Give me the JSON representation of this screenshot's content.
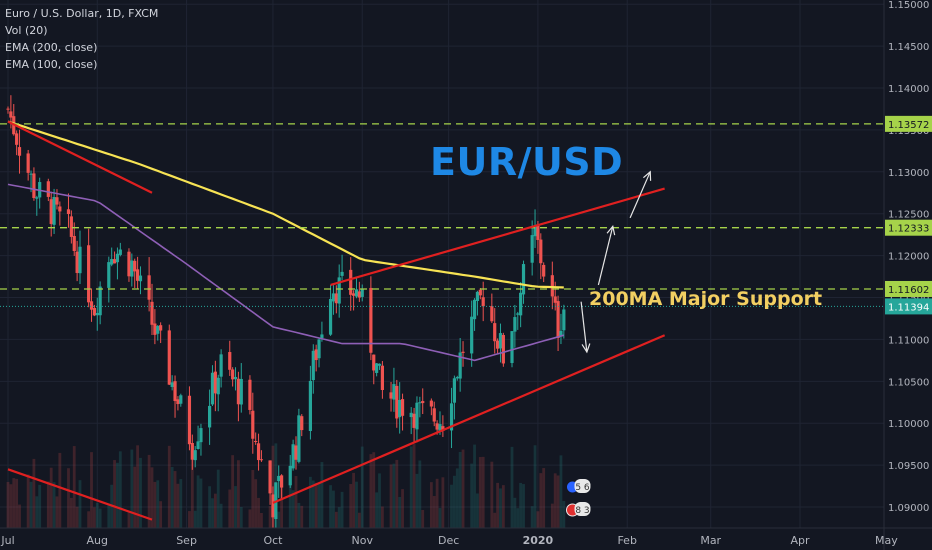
{
  "header": {
    "symbol_line": "Euro / U.S. Dollar, 1D, FXCM",
    "vol_line": "Vol (20)",
    "ema200_line": "EMA (200, close)",
    "ema100_line": "EMA (100, close)"
  },
  "annotations": {
    "title": "EUR/USD",
    "support_label": "200MA Major Support"
  },
  "colors": {
    "background": "#131722",
    "grid": "#1f2433",
    "up": "#26a69a",
    "down": "#ef5350",
    "ema200": "#f7e354",
    "ema100": "#8e5fb6",
    "trendline": "#e02020",
    "level": "#a6d34a",
    "title": "#1e88e5",
    "support_text": "#f2cf62"
  },
  "chart_data": {
    "type": "candlestick",
    "symbol": "EURUSD",
    "interval": "1D",
    "source": "FXCM",
    "x_ticks": [
      "Jul",
      "Aug",
      "Sep",
      "Oct",
      "Nov",
      "Dec",
      "2020",
      "Feb",
      "Mar",
      "Apr",
      "May"
    ],
    "y_ticks": [
      "1.09000",
      "1.09500",
      "1.10000",
      "1.10500",
      "1.11000",
      "1.11500",
      "1.12000",
      "1.12500",
      "1.13000",
      "1.13500",
      "1.14000",
      "1.14500",
      "1.15000"
    ],
    "ylim": [
      1.0875,
      1.1505
    ],
    "price_labels": [
      "1.13572",
      "1.12333",
      "1.11602",
      "1.11394"
    ],
    "horizontal_levels": [
      1.13572,
      1.12333,
      1.11602
    ],
    "last_price": 1.11394,
    "price_path_anchors": [
      {
        "x": "2019-07-01",
        "y": 1.1375
      },
      {
        "x": "2019-07-10",
        "y": 1.128
      },
      {
        "x": "2019-07-22",
        "y": 1.123
      },
      {
        "x": "2019-07-31",
        "y": 1.114
      },
      {
        "x": "2019-08-06",
        "y": 1.121
      },
      {
        "x": "2019-08-13",
        "y": 1.119
      },
      {
        "x": "2019-08-23",
        "y": 1.109
      },
      {
        "x": "2019-09-03",
        "y": 1.0975
      },
      {
        "x": "2019-09-13",
        "y": 1.107
      },
      {
        "x": "2019-09-20",
        "y": 1.1035
      },
      {
        "x": "2019-10-01",
        "y": 1.0905
      },
      {
        "x": "2019-10-09",
        "y": 1.0975
      },
      {
        "x": "2019-10-21",
        "y": 1.1165
      },
      {
        "x": "2019-10-31",
        "y": 1.1155
      },
      {
        "x": "2019-11-08",
        "y": 1.1035
      },
      {
        "x": "2019-11-22",
        "y": 1.101
      },
      {
        "x": "2019-11-29",
        "y": 1.1005
      },
      {
        "x": "2019-12-06",
        "y": 1.109
      },
      {
        "x": "2019-12-13",
        "y": 1.1155
      },
      {
        "x": "2019-12-20",
        "y": 1.108
      },
      {
        "x": "2019-12-31",
        "y": 1.1225
      },
      {
        "x": "2020-01-08",
        "y": 1.1115
      },
      {
        "x": "2020-01-10",
        "y": 1.1139
      }
    ],
    "ema200_anchors": [
      {
        "x": "2019-07-01",
        "y": 1.136
      },
      {
        "x": "2019-08-15",
        "y": 1.131
      },
      {
        "x": "2019-10-01",
        "y": 1.125
      },
      {
        "x": "2019-11-01",
        "y": 1.1195
      },
      {
        "x": "2019-12-10",
        "y": 1.1175
      },
      {
        "x": "2019-12-31",
        "y": 1.1163
      },
      {
        "x": "2020-01-10",
        "y": 1.1162
      }
    ],
    "ema100_anchors": [
      {
        "x": "2019-07-01",
        "y": 1.1285
      },
      {
        "x": "2019-08-01",
        "y": 1.1265
      },
      {
        "x": "2019-09-01",
        "y": 1.119
      },
      {
        "x": "2019-10-01",
        "y": 1.1115
      },
      {
        "x": "2019-10-25",
        "y": 1.1095
      },
      {
        "x": "2019-11-15",
        "y": 1.1095
      },
      {
        "x": "2019-12-10",
        "y": 1.1075
      },
      {
        "x": "2020-01-10",
        "y": 1.1105
      }
    ],
    "trendlines": [
      {
        "from": {
          "x": "2019-07-01",
          "y": 1.136
        },
        "to": {
          "x": "2019-08-20",
          "y": 1.1275
        }
      },
      {
        "from": {
          "x": "2019-10-21",
          "y": 1.1165
        },
        "to": {
          "x": "2020-02-14",
          "y": 1.128
        }
      },
      {
        "from": {
          "x": "2019-10-01",
          "y": 1.0905
        },
        "to": {
          "x": "2020-02-14",
          "y": 1.1105
        }
      },
      {
        "from": {
          "x": "2019-07-01",
          "y": 1.0945
        },
        "to": {
          "x": "2019-08-20",
          "y": 1.0885
        }
      }
    ],
    "arrows": [
      {
        "from": {
          "x": "2020-02-02",
          "y": 1.1245
        },
        "to": {
          "x": "2020-02-09",
          "y": 1.13
        }
      },
      {
        "from": {
          "x": "2020-01-22",
          "y": 1.1165
        },
        "to": {
          "x": "2020-01-27",
          "y": 1.1235
        }
      },
      {
        "from": {
          "x": "2020-01-16",
          "y": 1.1145
        },
        "to": {
          "x": "2020-01-18",
          "y": 1.1085
        }
      }
    ],
    "event_badges": [
      "5",
      "6",
      "8",
      "3"
    ]
  }
}
